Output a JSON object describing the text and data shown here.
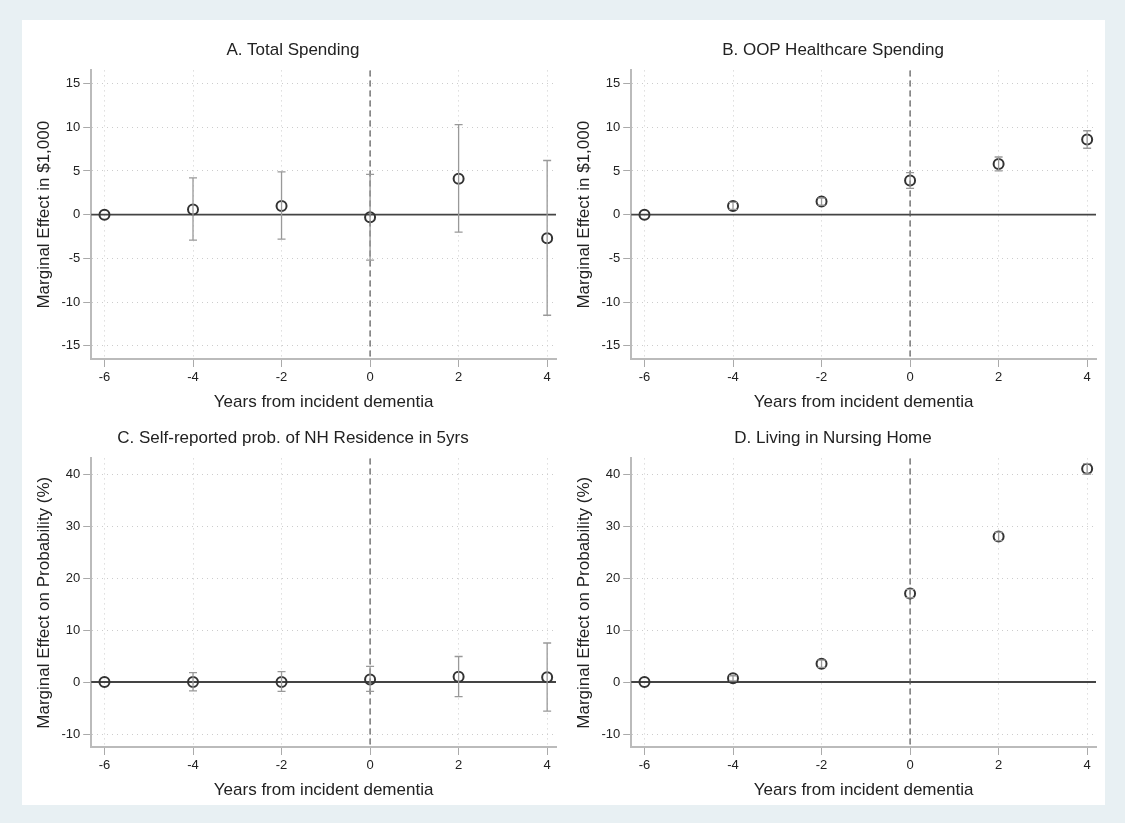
{
  "chart_data": [
    {
      "type": "scatter",
      "title": "A. Total Spending",
      "xlabel": "Years from incident dementia",
      "ylabel": "Marginal Effect in $1,000",
      "x": [
        -6,
        -4,
        -2,
        0,
        2,
        4
      ],
      "marker": "circle",
      "grid": true,
      "xlim": [
        -6.3,
        4.2
      ],
      "xticks": [
        -6,
        -4,
        -2,
        0,
        2,
        4
      ],
      "ylim": [
        -16.5,
        16.5
      ],
      "yticks": [
        -15,
        -10,
        -5,
        0,
        5,
        10,
        15
      ],
      "series": [
        {
          "color": "#333333",
          "values": [
            0,
            0.6,
            1.0,
            -0.3,
            4.1,
            -2.7
          ],
          "errors": [
            null,
            [
              -2.9,
              4.2
            ],
            [
              -2.8,
              4.9
            ],
            [
              -5.2,
              4.6
            ],
            [
              -2.0,
              10.3
            ],
            [
              -11.5,
              6.2
            ]
          ]
        }
      ],
      "ref_lines": [
        {
          "axis": "y",
          "value": 0,
          "color": "#444444",
          "line_style": "solid"
        },
        {
          "axis": "x",
          "value": 0,
          "color": "#555555",
          "line_style": "dashed"
        }
      ]
    },
    {
      "type": "scatter",
      "title": "B. OOP Healthcare Spending",
      "xlabel": "Years from incident dementia",
      "ylabel": "Marginal Effect in $1,000",
      "x": [
        -6,
        -4,
        -2,
        0,
        2,
        4
      ],
      "marker": "circle",
      "grid": true,
      "xlim": [
        -6.3,
        4.2
      ],
      "xticks": [
        -6,
        -4,
        -2,
        0,
        2,
        4
      ],
      "ylim": [
        -16.5,
        16.5
      ],
      "yticks": [
        -15,
        -10,
        -5,
        0,
        5,
        10,
        15
      ],
      "series": [
        {
          "color": "#333333",
          "values": [
            0,
            1.0,
            1.5,
            3.9,
            5.8,
            8.6
          ],
          "errors": [
            null,
            [
              0.6,
              1.4
            ],
            [
              1.1,
              1.9
            ],
            [
              3.0,
              4.8
            ],
            [
              5.0,
              6.6
            ],
            [
              7.6,
              9.6
            ]
          ]
        }
      ],
      "ref_lines": [
        {
          "axis": "y",
          "value": 0,
          "color": "#444444",
          "line_style": "solid"
        },
        {
          "axis": "x",
          "value": 0,
          "color": "#555555",
          "line_style": "dashed"
        }
      ]
    },
    {
      "type": "scatter",
      "title": "C. Self-reported prob. of NH Residence in 5yrs",
      "xlabel": "Years from incident dementia",
      "ylabel": "Marginal Effect on Probability (%)",
      "x": [
        -6,
        -4,
        -2,
        0,
        2,
        4
      ],
      "marker": "circle",
      "grid": true,
      "xlim": [
        -6.3,
        4.2
      ],
      "xticks": [
        -6,
        -4,
        -2,
        0,
        2,
        4
      ],
      "ylim": [
        -12.5,
        43
      ],
      "yticks": [
        -10,
        0,
        10,
        20,
        30,
        40
      ],
      "series": [
        {
          "color": "#333333",
          "values": [
            0,
            0,
            0,
            0.5,
            1.0,
            0.9
          ],
          "errors": [
            null,
            [
              -1.7,
              1.8
            ],
            [
              -1.8,
              2.0
            ],
            [
              -1.8,
              3.0
            ],
            [
              -2.8,
              4.9
            ],
            [
              -5.6,
              7.5
            ]
          ]
        }
      ],
      "ref_lines": [
        {
          "axis": "y",
          "value": 0,
          "color": "#444444",
          "line_style": "solid"
        },
        {
          "axis": "x",
          "value": 0,
          "color": "#555555",
          "line_style": "dashed"
        }
      ]
    },
    {
      "type": "scatter",
      "title": "D. Living in Nursing Home",
      "xlabel": "Years from incident dementia",
      "ylabel": "Marginal Effect on Probability (%)",
      "x": [
        -6,
        -4,
        -2,
        0,
        2,
        4
      ],
      "marker": "circle",
      "grid": true,
      "xlim": [
        -6.3,
        4.2
      ],
      "xticks": [
        -6,
        -4,
        -2,
        0,
        2,
        4
      ],
      "ylim": [
        -12.5,
        43
      ],
      "yticks": [
        -10,
        0,
        10,
        20,
        30,
        40
      ],
      "series": [
        {
          "color": "#333333",
          "values": [
            0,
            0.7,
            3.5,
            17,
            28,
            41
          ],
          "errors": [
            null,
            [
              0.2,
              1.2
            ],
            [
              2.8,
              4.2
            ],
            [
              16.2,
              17.8
            ],
            [
              27.2,
              28.8
            ],
            [
              40.0,
              42.0
            ]
          ]
        }
      ],
      "ref_lines": [
        {
          "axis": "y",
          "value": 0,
          "color": "#444444",
          "line_style": "solid"
        },
        {
          "axis": "x",
          "value": 0,
          "color": "#555555",
          "line_style": "dashed"
        }
      ]
    }
  ]
}
